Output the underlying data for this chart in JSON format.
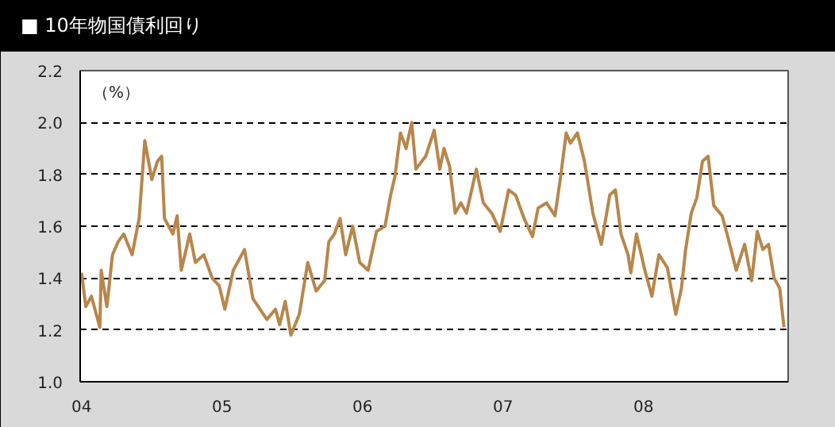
{
  "chart_data": {
    "type": "line",
    "title": "■ 10年物国債利回り",
    "ylabel": "（%）",
    "x": [
      2004.0,
      2004.03,
      2004.07,
      2004.13,
      2004.14,
      2004.18,
      2004.22,
      2004.26,
      2004.3,
      2004.36,
      2004.41,
      2004.45,
      2004.5,
      2004.54,
      2004.57,
      2004.59,
      2004.65,
      2004.68,
      2004.71,
      2004.77,
      2004.81,
      2004.87,
      2004.93,
      2004.98,
      2005.02,
      2005.08,
      2005.16,
      2005.22,
      2005.32,
      2005.38,
      2005.41,
      2005.45,
      2005.49,
      2005.55,
      2005.61,
      2005.67,
      2005.73,
      2005.76,
      2005.8,
      2005.84,
      2005.88,
      2005.93,
      2005.98,
      2006.04,
      2006.1,
      2006.16,
      2006.2,
      2006.23,
      2006.27,
      2006.31,
      2006.35,
      2006.38,
      2006.45,
      2006.51,
      2006.55,
      2006.58,
      2006.62,
      2006.66,
      2006.7,
      2006.74,
      2006.81,
      2006.86,
      2006.92,
      2006.98,
      2007.04,
      2007.09,
      2007.15,
      2007.21,
      2007.25,
      2007.31,
      2007.37,
      2007.41,
      2007.45,
      2007.48,
      2007.53,
      2007.58,
      2007.64,
      2007.7,
      2007.76,
      2007.8,
      2007.84,
      2007.89,
      2007.91,
      2007.95,
      2008.01,
      2008.06,
      2008.11,
      2008.17,
      2008.23,
      2008.27,
      2008.3,
      2008.34,
      2008.38,
      2008.42,
      2008.46,
      2008.5,
      2008.56,
      2008.6,
      2008.66,
      2008.72,
      2008.77,
      2008.81,
      2008.85,
      2008.89,
      2008.93,
      2008.97,
      2009.0
    ],
    "series": [
      {
        "color": "#b8864b",
        "values": [
          1.42,
          1.29,
          1.33,
          1.21,
          1.43,
          1.29,
          1.49,
          1.54,
          1.57,
          1.49,
          1.63,
          1.93,
          1.78,
          1.85,
          1.87,
          1.63,
          1.57,
          1.64,
          1.43,
          1.57,
          1.46,
          1.49,
          1.4,
          1.37,
          1.28,
          1.43,
          1.51,
          1.32,
          1.24,
          1.28,
          1.22,
          1.31,
          1.18,
          1.26,
          1.46,
          1.35,
          1.39,
          1.54,
          1.57,
          1.63,
          1.49,
          1.6,
          1.46,
          1.43,
          1.58,
          1.6,
          1.72,
          1.79,
          1.96,
          1.9,
          2.0,
          1.82,
          1.87,
          1.97,
          1.82,
          1.9,
          1.83,
          1.65,
          1.69,
          1.65,
          1.82,
          1.69,
          1.65,
          1.58,
          1.74,
          1.72,
          1.63,
          1.56,
          1.67,
          1.69,
          1.64,
          1.79,
          1.96,
          1.92,
          1.96,
          1.85,
          1.65,
          1.53,
          1.72,
          1.74,
          1.57,
          1.49,
          1.42,
          1.57,
          1.43,
          1.33,
          1.49,
          1.44,
          1.26,
          1.36,
          1.51,
          1.65,
          1.71,
          1.85,
          1.87,
          1.68,
          1.64,
          1.56,
          1.43,
          1.53,
          1.39,
          1.58,
          1.51,
          1.53,
          1.4,
          1.36,
          1.21
        ]
      }
    ],
    "xlim": [
      2003.99,
      2009.03
    ],
    "xticks": [
      {
        "value": 2004,
        "label": "04"
      },
      {
        "value": 2005,
        "label": "05"
      },
      {
        "value": 2006,
        "label": "06"
      },
      {
        "value": 2007,
        "label": "07"
      },
      {
        "value": 2008,
        "label": "08"
      }
    ],
    "ylim": [
      1.0,
      2.2
    ],
    "yticks": [
      {
        "value": 1.0,
        "label": "1.0"
      },
      1.2,
      1.4,
      1.6,
      1.8,
      {
        "value": 2.0,
        "label": "2.0"
      },
      2.2
    ],
    "grid": "y",
    "marker": "none",
    "line_style": "solid"
  }
}
